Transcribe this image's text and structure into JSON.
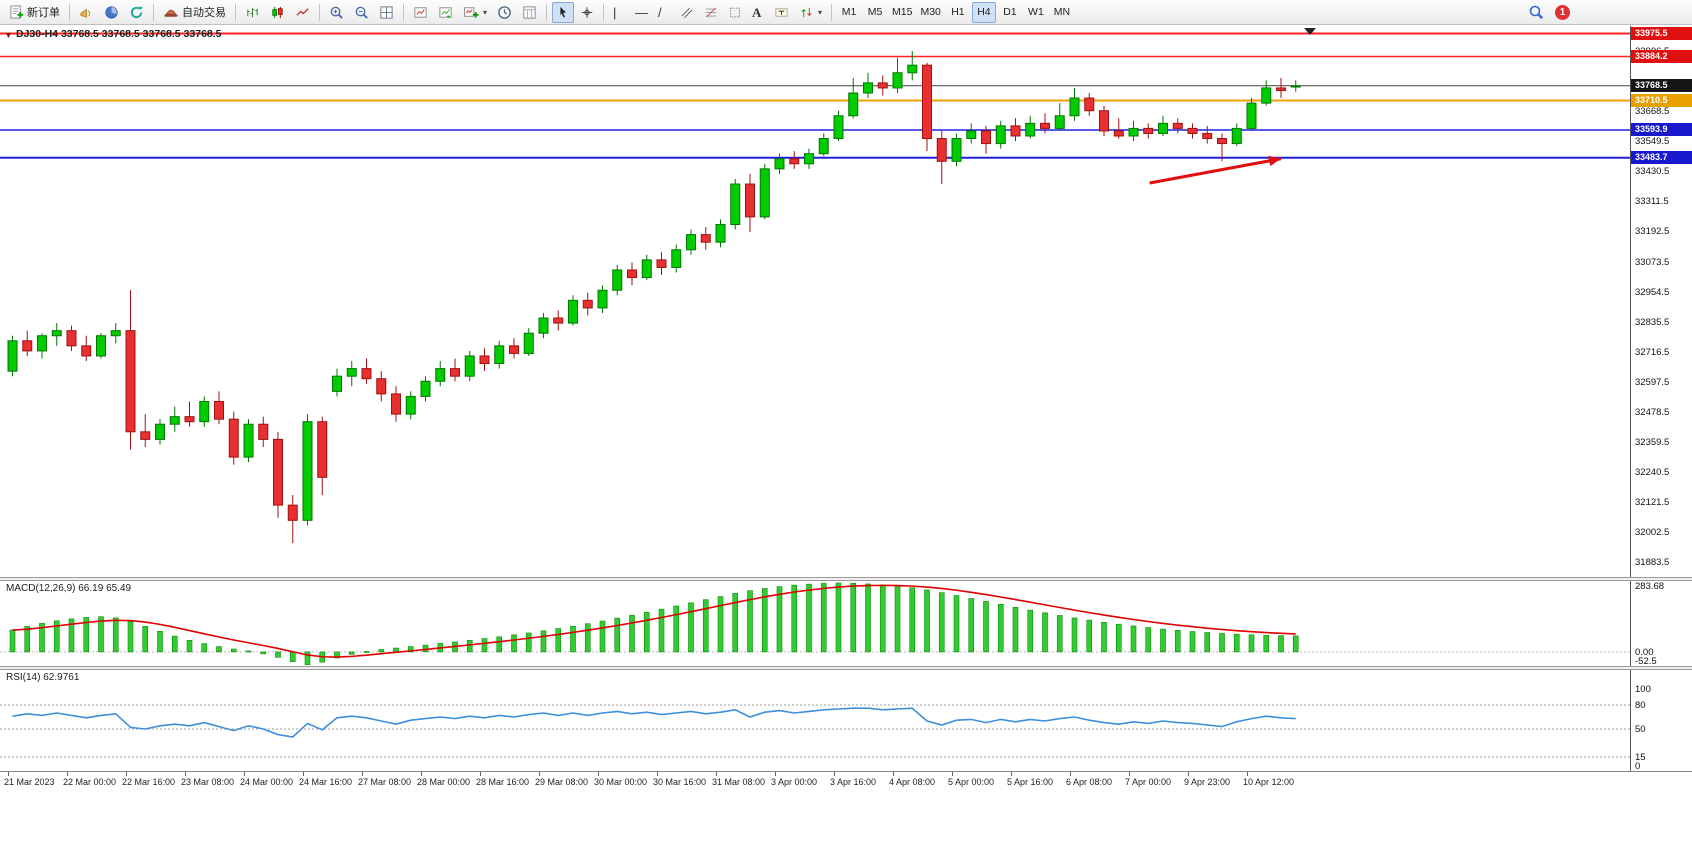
{
  "toolbar": {
    "new_order": "新订单",
    "autotrade": "自动交易",
    "text_tool": "A",
    "timeframes": [
      "M1",
      "M5",
      "M15",
      "M30",
      "H1",
      "H4",
      "D1",
      "W1",
      "MN"
    ],
    "active_timeframe": "H4",
    "notification_count": "1"
  },
  "icons": {
    "one_click_toggle": "▼",
    "dropdown_caret": "▾"
  },
  "chart": {
    "title": "DJ30-H4  33768.5 33768.5 33768.5 33768.5",
    "symbol": "DJ30",
    "period": "H4",
    "current_price": 33768.5,
    "colors": {
      "up": "#00CC00",
      "up_border": "#007700",
      "down": "#E83030",
      "down_border": "#A01010",
      "macd_hist": "#32CC32",
      "macd_signal": "#E00000",
      "rsi": "#3E8EDE"
    },
    "hlines": [
      {
        "price": 33975.5,
        "color": "#FF2020",
        "w": 2
      },
      {
        "price": 33884.2,
        "color": "#FF2020",
        "w": 1.5
      },
      {
        "price": 33768.5,
        "color": "#404040",
        "w": 1
      },
      {
        "price": 33710.5,
        "color": "#F0A000",
        "w": 2
      },
      {
        "price": 33593.9,
        "color": "#2020E0",
        "w": 1.5
      },
      {
        "price": 33483.7,
        "color": "#2020E0",
        "w": 2
      }
    ],
    "price_axis": {
      "ticks": [
        33906.5,
        33668.5,
        33549.5,
        33430.5,
        33311.5,
        33192.5,
        33073.5,
        32954.5,
        32835.5,
        32716.5,
        32597.5,
        32478.5,
        32359.5,
        32240.5,
        32121.5,
        32002.5,
        31883.5
      ],
      "badges": [
        {
          "price": 33975.5,
          "text": "33975.5",
          "color": "#E01010"
        },
        {
          "price": 33884.2,
          "text": "33884.2",
          "color": "#E01010"
        },
        {
          "price": 33768.5,
          "text": "33768.5",
          "color": "#151515"
        },
        {
          "price": 33710.5,
          "text": "33710.5",
          "color": "#E8A000"
        },
        {
          "price": 33593.9,
          "text": "33593.9",
          "color": "#1818CC"
        },
        {
          "price": 33483.7,
          "text": "33483.7",
          "color": "#1818CC"
        }
      ]
    }
  },
  "chart_data": {
    "type": "candlestick",
    "symbol": "DJ30",
    "timeframe": "H4",
    "candles": [
      [
        32640,
        32780,
        32620,
        32760
      ],
      [
        32760,
        32800,
        32700,
        32720
      ],
      [
        32720,
        32790,
        32690,
        32780
      ],
      [
        32780,
        32830,
        32740,
        32800
      ],
      [
        32800,
        32820,
        32720,
        32740
      ],
      [
        32740,
        32780,
        32680,
        32700
      ],
      [
        32700,
        32790,
        32690,
        32780
      ],
      [
        32780,
        32830,
        32750,
        32800
      ],
      [
        32800,
        32960,
        32330,
        32400
      ],
      [
        32400,
        32470,
        32340,
        32370
      ],
      [
        32370,
        32450,
        32350,
        32430
      ],
      [
        32430,
        32500,
        32400,
        32460
      ],
      [
        32460,
        32520,
        32420,
        32440
      ],
      [
        32440,
        32540,
        32420,
        32520
      ],
      [
        32520,
        32560,
        32430,
        32450
      ],
      [
        32450,
        32480,
        32270,
        32300
      ],
      [
        32300,
        32450,
        32280,
        32430
      ],
      [
        32430,
        32460,
        32340,
        32370
      ],
      [
        32370,
        32400,
        32060,
        32110
      ],
      [
        32110,
        32150,
        31960,
        32050
      ],
      [
        32050,
        32470,
        32030,
        32440
      ],
      [
        32440,
        32460,
        32150,
        32220
      ],
      [
        32560,
        32650,
        32540,
        32620
      ],
      [
        32620,
        32680,
        32580,
        32650
      ],
      [
        32650,
        32690,
        32590,
        32610
      ],
      [
        32610,
        32640,
        32520,
        32550
      ],
      [
        32550,
        32580,
        32440,
        32470
      ],
      [
        32470,
        32560,
        32450,
        32540
      ],
      [
        32540,
        32620,
        32520,
        32600
      ],
      [
        32600,
        32680,
        32580,
        32650
      ],
      [
        32650,
        32690,
        32600,
        32620
      ],
      [
        32620,
        32720,
        32600,
        32700
      ],
      [
        32700,
        32730,
        32640,
        32670
      ],
      [
        32670,
        32760,
        32650,
        32740
      ],
      [
        32740,
        32770,
        32690,
        32710
      ],
      [
        32710,
        32810,
        32700,
        32790
      ],
      [
        32790,
        32870,
        32770,
        32850
      ],
      [
        32850,
        32880,
        32800,
        32830
      ],
      [
        32830,
        32940,
        32820,
        32920
      ],
      [
        32920,
        32950,
        32860,
        32890
      ],
      [
        32890,
        32980,
        32870,
        32960
      ],
      [
        32960,
        33060,
        32940,
        33040
      ],
      [
        33040,
        33070,
        32980,
        33010
      ],
      [
        33010,
        33100,
        33000,
        33080
      ],
      [
        33080,
        33110,
        33020,
        33050
      ],
      [
        33050,
        33140,
        33030,
        33120
      ],
      [
        33120,
        33200,
        33100,
        33180
      ],
      [
        33180,
        33210,
        33120,
        33150
      ],
      [
        33150,
        33240,
        33130,
        33220
      ],
      [
        33220,
        33400,
        33200,
        33380
      ],
      [
        33380,
        33420,
        33190,
        33250
      ],
      [
        33250,
        33460,
        33240,
        33440
      ],
      [
        33440,
        33500,
        33420,
        33480
      ],
      [
        33480,
        33510,
        33440,
        33460
      ],
      [
        33460,
        33520,
        33440,
        33500
      ],
      [
        33500,
        33580,
        33490,
        33560
      ],
      [
        33560,
        33670,
        33550,
        33650
      ],
      [
        33650,
        33800,
        33640,
        33740
      ],
      [
        33740,
        33820,
        33720,
        33780
      ],
      [
        33780,
        33810,
        33730,
        33760
      ],
      [
        33760,
        33880,
        33740,
        33820
      ],
      [
        33820,
        33906,
        33790,
        33850
      ],
      [
        33850,
        33860,
        33510,
        33560
      ],
      [
        33560,
        33590,
        33380,
        33470
      ],
      [
        33470,
        33580,
        33450,
        33560
      ],
      [
        33560,
        33620,
        33540,
        33590
      ],
      [
        33590,
        33610,
        33500,
        33540
      ],
      [
        33540,
        33630,
        33520,
        33610
      ],
      [
        33610,
        33640,
        33550,
        33570
      ],
      [
        33570,
        33650,
        33560,
        33620
      ],
      [
        33620,
        33660,
        33580,
        33600
      ],
      [
        33600,
        33700,
        33590,
        33650
      ],
      [
        33650,
        33760,
        33630,
        33720
      ],
      [
        33720,
        33740,
        33650,
        33670
      ],
      [
        33670,
        33690,
        33570,
        33590
      ],
      [
        33590,
        33640,
        33560,
        33570
      ],
      [
        33570,
        33630,
        33550,
        33600
      ],
      [
        33600,
        33620,
        33560,
        33580
      ],
      [
        33580,
        33650,
        33570,
        33620
      ],
      [
        33620,
        33640,
        33580,
        33600
      ],
      [
        33600,
        33620,
        33560,
        33580
      ],
      [
        33580,
        33610,
        33540,
        33560
      ],
      [
        33560,
        33580,
        33470,
        33540
      ],
      [
        33540,
        33620,
        33530,
        33600
      ],
      [
        33600,
        33720,
        33590,
        33700
      ],
      [
        33700,
        33790,
        33690,
        33760
      ],
      [
        33760,
        33800,
        33720,
        33750
      ],
      [
        33768.5,
        33790,
        33745,
        33768.5
      ]
    ],
    "time_labels": [
      {
        "text": "21 Mar 2023",
        "bar": 0
      },
      {
        "text": "22 Mar 00:00",
        "bar": 4
      },
      {
        "text": "22 Mar 16:00",
        "bar": 8
      },
      {
        "text": "23 Mar 08:00",
        "bar": 12
      },
      {
        "text": "24 Mar 00:00",
        "bar": 16
      },
      {
        "text": "24 Mar 16:00",
        "bar": 20
      },
      {
        "text": "27 Mar 08:00",
        "bar": 24
      },
      {
        "text": "28 Mar 00:00",
        "bar": 28
      },
      {
        "text": "28 Mar 16:00",
        "bar": 32
      },
      {
        "text": "29 Mar 08:00",
        "bar": 36
      },
      {
        "text": "30 Mar 00:00",
        "bar": 40
      },
      {
        "text": "30 Mar 16:00",
        "bar": 44
      },
      {
        "text": "31 Mar 08:00",
        "bar": 48
      },
      {
        "text": "3 Apr 00:00",
        "bar": 52
      },
      {
        "text": "3 Apr 16:00",
        "bar": 56
      },
      {
        "text": "4 Apr 08:00",
        "bar": 60
      },
      {
        "text": "5 Apr 00:00",
        "bar": 64
      },
      {
        "text": "5 Apr 16:00",
        "bar": 68
      },
      {
        "text": "6 Apr 08:00",
        "bar": 72
      },
      {
        "text": "7 Apr 00:00",
        "bar": 76
      },
      {
        "text": "9 Apr 23:00",
        "bar": 80
      },
      {
        "text": "10 Apr 12:00",
        "bar": 84
      }
    ],
    "macd": {
      "label": "MACD(12,26,9)",
      "value1": "66.19",
      "value2": "65.49",
      "axis": [
        {
          "v": 283.68,
          "t": "283.68"
        },
        {
          "v": 0,
          "t": "0.00"
        },
        {
          "v": -52.5,
          "t": "-52.5"
        }
      ],
      "ylim": [
        -58,
        292
      ],
      "histogram": [
        90,
        105,
        118,
        128,
        136,
        142,
        145,
        140,
        125,
        105,
        85,
        65,
        48,
        34,
        22,
        12,
        4,
        -8,
        -22,
        -40,
        -52.5,
        -42,
        -25,
        -10,
        2,
        10,
        16,
        22,
        28,
        35,
        41,
        48,
        55,
        62,
        70,
        78,
        87,
        96,
        106,
        116,
        127,
        139,
        151,
        163,
        176,
        189,
        202,
        215,
        228,
        241,
        252,
        261,
        269,
        275,
        279,
        282,
        283.68,
        283,
        280,
        276,
        271,
        264,
        255,
        244,
        232,
        220,
        208,
        196,
        184,
        172,
        161,
        150,
        140,
        131,
        122,
        114,
        107,
        100,
        94,
        89,
        84,
        80,
        76,
        73,
        70.5,
        68.5,
        67,
        66.19
      ]
    },
    "rsi": {
      "label": "RSI(14)",
      "value": "62.9761",
      "axis": [
        {
          "v": 100,
          "t": "100"
        },
        {
          "v": 80,
          "t": "80"
        },
        {
          "v": 50,
          "t": "50"
        },
        {
          "v": 15,
          "t": "15"
        },
        {
          "v": 0,
          "t": "0"
        }
      ],
      "levels": [
        80,
        50,
        15
      ],
      "values": [
        66,
        69,
        67,
        70,
        67,
        64,
        67,
        69,
        52,
        50,
        54,
        56,
        54,
        58,
        53,
        48,
        54,
        50,
        43,
        40,
        57,
        49,
        64,
        66,
        64,
        60,
        56,
        61,
        63,
        65,
        63,
        66,
        64,
        67,
        65,
        68,
        70,
        67,
        70,
        67,
        70,
        72,
        69,
        71,
        68,
        70,
        72,
        69,
        71,
        74,
        65,
        71,
        73,
        70,
        72,
        74,
        75,
        76,
        76,
        74,
        75,
        76,
        60,
        55,
        61,
        62,
        58,
        62,
        59,
        62,
        60,
        63,
        65,
        61,
        58,
        56,
        59,
        57,
        60,
        58,
        57,
        55,
        53,
        59,
        63,
        66,
        64,
        62.98
      ]
    }
  },
  "annotation": {
    "arrow": {
      "color": "#E01010",
      "tail": {
        "bar": 77.4,
        "price": 33384
      },
      "head": {
        "bar": 86.3,
        "price": 33480
      },
      "points_to_price": 33483.7
    }
  }
}
